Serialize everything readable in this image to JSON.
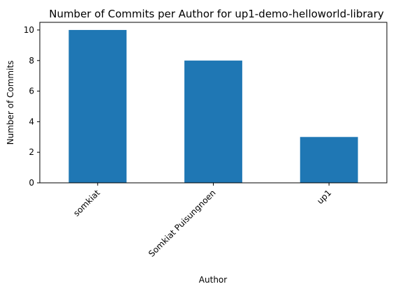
{
  "chart_data": {
    "type": "bar",
    "title": "Number of Commits per Author for up1-demo-helloworld-library",
    "xlabel": "Author",
    "ylabel": "Number of Commits",
    "categories": [
      "somkiat",
      "Somkiat Puisungnoen",
      "up1"
    ],
    "values": [
      10,
      8,
      3
    ],
    "ylim": [
      0,
      10.5
    ],
    "yticks": [
      0,
      2,
      4,
      6,
      8,
      10
    ],
    "bar_color": "#1f77b4",
    "grid": false,
    "legend": "none"
  }
}
